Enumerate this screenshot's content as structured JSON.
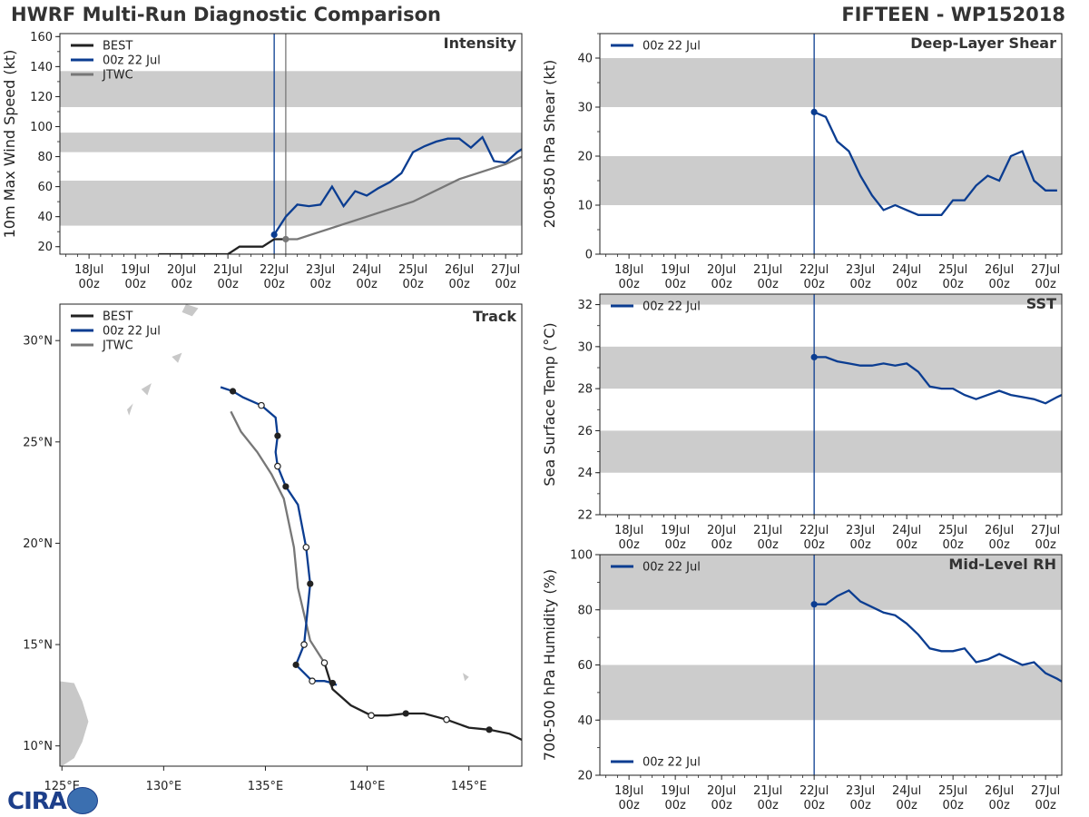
{
  "header": {
    "left_title": "HWRF Multi-Run Diagnostic Comparison",
    "right_title": "FIFTEEN - WP152018"
  },
  "logo": {
    "text": "CIRA"
  },
  "colors": {
    "best": "#222222",
    "run": "#0b3d91",
    "jtwc": "#777777",
    "band": "#cccccc",
    "land": "#c8c8c8"
  },
  "time_axis": {
    "ticks": [
      {
        "day": 0,
        "label_top": "18Jul",
        "label_bottom": "00z"
      },
      {
        "day": 1,
        "label_top": "19Jul",
        "label_bottom": "00z"
      },
      {
        "day": 2,
        "label_top": "20Jul",
        "label_bottom": "00z"
      },
      {
        "day": 3,
        "label_top": "21Jul",
        "label_bottom": "00z"
      },
      {
        "day": 4,
        "label_top": "22Jul",
        "label_bottom": "00z"
      },
      {
        "day": 5,
        "label_top": "23Jul",
        "label_bottom": "00z"
      },
      {
        "day": 6,
        "label_top": "24Jul",
        "label_bottom": "00z"
      },
      {
        "day": 7,
        "label_top": "25Jul",
        "label_bottom": "00z"
      },
      {
        "day": 8,
        "label_top": "26Jul",
        "label_bottom": "00z"
      },
      {
        "day": 9,
        "label_top": "27Jul",
        "label_bottom": "00z"
      }
    ],
    "xlim": [
      -0.63,
      9.35
    ],
    "init_day": 4.0
  },
  "chart_data": [
    {
      "id": "intensity",
      "type": "line",
      "title": "Intensity",
      "ylabel": "10m Max Wind Speed (kt)",
      "ylim": [
        15,
        162
      ],
      "yticks": [
        20,
        40,
        60,
        80,
        100,
        120,
        140,
        160
      ],
      "bands": [
        [
          34,
          64
        ],
        [
          83,
          96
        ],
        [
          113,
          137
        ]
      ],
      "legend": [
        "BEST",
        "00z 22 Jul",
        "JTWC"
      ],
      "vlines": [
        4.0,
        4.25
      ],
      "series": [
        {
          "name": "BEST",
          "key": "best",
          "x": [
            1.5,
            2.0,
            2.5,
            3.0,
            3.25,
            3.5,
            3.75,
            4.0,
            4.25
          ],
          "y": [
            15,
            15,
            15,
            15,
            20,
            20,
            20,
            25,
            25
          ]
        },
        {
          "name": "00z 22 Jul",
          "key": "run",
          "x": [
            4.0,
            4.25,
            4.5,
            4.75,
            5.0,
            5.25,
            5.5,
            5.75,
            6.0,
            6.25,
            6.5,
            6.75,
            7.0,
            7.25,
            7.5,
            7.75,
            8.0,
            8.25,
            8.5,
            8.75,
            9.0,
            9.25,
            9.35
          ],
          "y": [
            28,
            40,
            48,
            47,
            48,
            60,
            47,
            57,
            54,
            59,
            63,
            69,
            83,
            87,
            90,
            92,
            92,
            86,
            93,
            77,
            76,
            83,
            85
          ],
          "markers": [
            0
          ]
        },
        {
          "name": "JTWC",
          "key": "jtwc",
          "x": [
            4.25,
            4.5,
            5.0,
            6.0,
            7.0,
            8.0,
            9.0,
            9.35
          ],
          "y": [
            25,
            25,
            30,
            40,
            50,
            65,
            75,
            80
          ],
          "markers": [
            0
          ]
        }
      ]
    },
    {
      "id": "shear",
      "type": "line",
      "title": "Deep-Layer Shear",
      "ylabel": "200-850 hPa Shear (kt)",
      "ylim": [
        0,
        45
      ],
      "yticks": [
        0,
        10,
        20,
        30,
        40
      ],
      "bands": [
        [
          10,
          20
        ],
        [
          30,
          40
        ]
      ],
      "legend": [
        "00z 22 Jul"
      ],
      "vlines": [
        4.0
      ],
      "series": [
        {
          "name": "00z 22 Jul",
          "key": "run",
          "x": [
            4.0,
            4.25,
            4.5,
            4.75,
            5.0,
            5.25,
            5.5,
            5.75,
            6.0,
            6.25,
            6.5,
            6.75,
            7.0,
            7.25,
            7.5,
            7.75,
            8.0,
            8.25,
            8.5,
            8.75,
            9.0,
            9.25
          ],
          "y": [
            29,
            28,
            23,
            21,
            16,
            12,
            9,
            10,
            9,
            8,
            8,
            8,
            11,
            11,
            14,
            16,
            15,
            20,
            21,
            15,
            13,
            13
          ],
          "markers": [
            0
          ]
        }
      ]
    },
    {
      "id": "sst",
      "type": "line",
      "title": "SST",
      "ylabel": "Sea Surface Temp (°C)",
      "ylim": [
        22,
        32.5
      ],
      "yticks": [
        22,
        24,
        26,
        28,
        30,
        32
      ],
      "bands": [
        [
          24,
          26
        ],
        [
          28,
          30
        ],
        [
          32,
          32.5
        ]
      ],
      "legend": [
        "00z 22 Jul"
      ],
      "vlines": [
        4.0
      ],
      "series": [
        {
          "name": "00z 22 Jul",
          "key": "run",
          "x": [
            4.0,
            4.25,
            4.5,
            4.75,
            5.0,
            5.25,
            5.5,
            5.75,
            6.0,
            6.25,
            6.5,
            6.75,
            7.0,
            7.25,
            7.5,
            7.75,
            8.0,
            8.25,
            8.5,
            8.75,
            9.0,
            9.25,
            9.35
          ],
          "y": [
            29.5,
            29.5,
            29.3,
            29.2,
            29.1,
            29.1,
            29.2,
            29.1,
            29.2,
            28.8,
            28.1,
            28.0,
            28.0,
            27.7,
            27.5,
            27.7,
            27.9,
            27.7,
            27.6,
            27.5,
            27.3,
            27.6,
            27.7
          ],
          "markers": [
            0
          ]
        }
      ]
    },
    {
      "id": "rh",
      "type": "line",
      "title": "Mid-Level RH",
      "ylabel": "700-500 hPa Humidity (%)",
      "ylim": [
        20,
        100
      ],
      "yticks": [
        20,
        40,
        60,
        80,
        100
      ],
      "bands": [
        [
          40,
          60
        ],
        [
          80,
          100
        ]
      ],
      "legend": [
        "00z 22 Jul"
      ],
      "vlines": [
        4.0
      ],
      "series": [
        {
          "name": "00z 22 Jul",
          "key": "run",
          "x": [
            4.0,
            4.25,
            4.5,
            4.75,
            5.0,
            5.25,
            5.5,
            5.75,
            6.0,
            6.25,
            6.5,
            6.75,
            7.0,
            7.25,
            7.5,
            7.75,
            8.0,
            8.25,
            8.5,
            8.75,
            9.0,
            9.25,
            9.35
          ],
          "y": [
            82,
            82,
            85,
            87,
            83,
            81,
            79,
            78,
            75,
            71,
            66,
            65,
            65,
            66,
            61,
            62,
            64,
            62,
            60,
            61,
            57,
            55,
            54
          ],
          "markers": [
            0
          ]
        }
      ]
    },
    {
      "id": "track",
      "type": "map",
      "title": "Track",
      "xlim": [
        124.9,
        147.6
      ],
      "ylim": [
        9.0,
        31.8
      ],
      "xticks": [
        {
          "v": 125,
          "label": "125°E"
        },
        {
          "v": 130,
          "label": "130°E"
        },
        {
          "v": 135,
          "label": "135°E"
        },
        {
          "v": 140,
          "label": "140°E"
        },
        {
          "v": 145,
          "label": "145°E"
        }
      ],
      "yticks": [
        {
          "v": 10,
          "label": "10°N"
        },
        {
          "v": 15,
          "label": "15°N"
        },
        {
          "v": 20,
          "label": "20°N"
        },
        {
          "v": 25,
          "label": "25°N"
        },
        {
          "v": 30,
          "label": "30°N"
        }
      ],
      "legend": [
        "BEST",
        "00z 22 Jul",
        "JTWC"
      ],
      "series": [
        {
          "name": "BEST",
          "key": "best",
          "lon": [
            147.6,
            147.0,
            146.0,
            145.0,
            143.9,
            142.8,
            141.9,
            141.0,
            140.2,
            139.2,
            138.3,
            137.9
          ],
          "lat": [
            10.3,
            10.6,
            10.8,
            10.9,
            11.3,
            11.6,
            11.6,
            11.5,
            11.5,
            12.0,
            12.8,
            14.1
          ],
          "filled": [
            2,
            6
          ],
          "open": [
            4,
            8
          ]
        },
        {
          "name": "00z 22 Jul",
          "key": "run",
          "lon": [
            138.5,
            138.3,
            137.9,
            137.3,
            136.9,
            136.5,
            136.9,
            137.2,
            137.0,
            136.6,
            136.0,
            135.6,
            135.5,
            135.6,
            135.5,
            134.8,
            133.9,
            133.4,
            132.8
          ],
          "lat": [
            13.0,
            13.1,
            13.2,
            13.2,
            13.6,
            14.0,
            15.0,
            18.0,
            19.8,
            21.9,
            22.8,
            23.8,
            24.5,
            25.3,
            26.2,
            26.8,
            27.2,
            27.5,
            27.7
          ],
          "filled": [
            1,
            5,
            7,
            10,
            13,
            17
          ],
          "open": [
            3,
            6,
            8,
            11,
            15
          ]
        },
        {
          "name": "JTWC",
          "key": "jtwc",
          "lon": [
            137.9,
            137.2,
            136.9,
            136.6,
            136.4,
            135.9,
            135.3,
            134.6,
            133.8,
            133.3
          ],
          "lat": [
            14.1,
            15.2,
            16.5,
            17.8,
            19.8,
            22.2,
            23.4,
            24.5,
            25.5,
            26.5
          ],
          "filled": [],
          "open": [
            0
          ]
        }
      ]
    }
  ]
}
